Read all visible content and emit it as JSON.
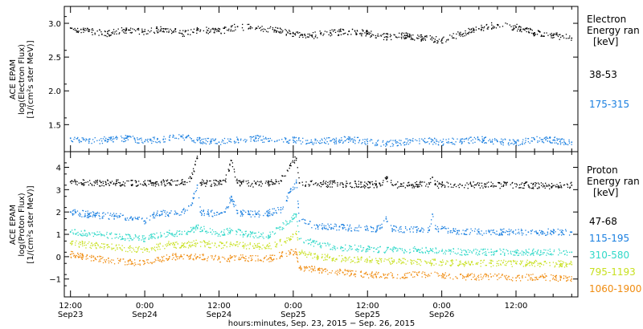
{
  "chart_data": [
    {
      "type": "scatter",
      "ylabel_lines": [
        "ACE EPAM",
        "log(Electron Flux)",
        "[1/(cm²s ster MeV)]"
      ],
      "ylim": [
        1.1,
        3.25
      ],
      "yticks": [
        1.5,
        2.0,
        2.5,
        3.0
      ],
      "ytick_labels": [
        "1.5",
        "2.0",
        "2.5",
        "3.0"
      ],
      "legend_title": [
        "Electron",
        "Energy ran",
        "[keV]"
      ],
      "series": [
        {
          "name": "38-53",
          "color": "#000000",
          "x": [
            0,
            3,
            6,
            9,
            12,
            15,
            18,
            21,
            24,
            27,
            30,
            33,
            36,
            39,
            42,
            45,
            48,
            51,
            54,
            57,
            60,
            63,
            66,
            69,
            72,
            75,
            78,
            81
          ],
          "y": [
            2.93,
            2.88,
            2.85,
            2.9,
            2.88,
            2.92,
            2.85,
            2.9,
            2.88,
            2.95,
            2.93,
            2.9,
            2.85,
            2.82,
            2.86,
            2.88,
            2.85,
            2.8,
            2.82,
            2.78,
            2.75,
            2.84,
            2.92,
            2.98,
            2.94,
            2.86,
            2.82,
            2.78
          ]
        },
        {
          "name": "175-315",
          "color": "#1a7fe0",
          "x": [
            0,
            3,
            6,
            9,
            12,
            15,
            18,
            21,
            24,
            27,
            30,
            33,
            36,
            39,
            42,
            45,
            48,
            51,
            54,
            57,
            60,
            63,
            66,
            69,
            72,
            75,
            78,
            81
          ],
          "y": [
            1.3,
            1.25,
            1.28,
            1.3,
            1.25,
            1.28,
            1.32,
            1.26,
            1.24,
            1.28,
            1.3,
            1.25,
            1.27,
            1.24,
            1.26,
            1.28,
            1.25,
            1.22,
            1.24,
            1.27,
            1.24,
            1.26,
            1.28,
            1.25,
            1.23,
            1.28,
            1.27,
            1.24
          ]
        }
      ]
    },
    {
      "type": "scatter",
      "ylabel_lines": [
        "ACE EPAM",
        "log(Proton Flux)",
        "[1/(cm²s ster MeV)]"
      ],
      "ylim": [
        -1.8,
        4.7
      ],
      "yticks": [
        -1,
        0,
        1,
        2,
        3,
        4
      ],
      "ytick_labels": [
        "−1",
        "0",
        "1",
        "2",
        "3",
        "4"
      ],
      "legend_title": [
        "Proton",
        "Energy ran",
        "[keV]"
      ],
      "xlabel": "hours:minutes, Sep. 23, 2015 − Sep. 26, 2015",
      "xlim": [
        -1,
        82
      ],
      "xticks": [
        0,
        12,
        24,
        36,
        48,
        60,
        72
      ],
      "xtick_time": [
        "12:00",
        "0:00",
        "12:00",
        "0:00",
        "12:00",
        "0:00",
        "12:00"
      ],
      "xtick_date": [
        "Sep23",
        "Sep24",
        "Sep24",
        "Sep25",
        "Sep25",
        "Sep26",
        ""
      ],
      "series": [
        {
          "name": "47-68",
          "color": "#000000",
          "x": [
            0,
            4,
            8,
            12,
            16,
            18,
            19.5,
            20.5,
            21,
            24,
            25,
            26,
            27,
            30,
            32,
            34,
            35.5,
            36.5,
            37,
            40,
            44,
            48,
            50,
            51,
            52,
            56,
            58,
            58.5,
            59,
            62,
            66,
            70,
            74,
            78,
            81
          ],
          "y": [
            3.35,
            3.3,
            3.3,
            3.28,
            3.3,
            3.3,
            3.5,
            4.4,
            3.3,
            3.28,
            3.4,
            4.3,
            3.3,
            3.25,
            3.3,
            3.4,
            4.1,
            4.4,
            3.3,
            3.25,
            3.25,
            3.22,
            3.25,
            3.5,
            3.22,
            3.22,
            3.25,
            3.55,
            3.22,
            3.2,
            3.2,
            3.2,
            3.2,
            3.18,
            3.2
          ]
        },
        {
          "name": "115-195",
          "color": "#1a7fe0",
          "x": [
            0,
            4,
            8,
            10,
            12,
            14,
            16,
            18,
            19.5,
            20.5,
            21,
            24,
            25,
            26,
            27,
            30,
            32,
            34,
            35.5,
            36.5,
            37,
            40,
            44,
            48,
            50,
            51,
            52,
            56,
            58,
            58.5,
            59,
            62,
            66,
            70,
            74,
            78,
            81
          ],
          "y": [
            2.0,
            1.85,
            1.8,
            1.65,
            1.6,
            1.95,
            1.95,
            2.0,
            2.3,
            3.2,
            2.0,
            1.9,
            2.0,
            2.7,
            1.95,
            1.9,
            1.95,
            2.1,
            2.9,
            3.3,
            1.6,
            1.35,
            1.3,
            1.25,
            1.25,
            1.7,
            1.25,
            1.2,
            1.2,
            1.9,
            1.25,
            1.15,
            1.1,
            1.1,
            1.1,
            1.1,
            1.1
          ]
        },
        {
          "name": "310-580",
          "color": "#2fd8c8",
          "x": [
            0,
            4,
            8,
            12,
            16,
            18,
            20.5,
            24,
            26,
            28,
            32,
            35.5,
            36.5,
            37,
            40,
            44,
            48,
            52,
            56,
            60,
            64,
            68,
            72,
            76,
            81
          ],
          "y": [
            1.1,
            1.0,
            0.9,
            0.8,
            1.05,
            1.0,
            1.3,
            1.0,
            1.2,
            1.0,
            0.95,
            1.6,
            1.9,
            0.8,
            0.55,
            0.4,
            0.35,
            0.3,
            0.3,
            0.25,
            0.2,
            0.2,
            0.2,
            0.2,
            0.2
          ]
        },
        {
          "name": "795-1193",
          "color": "#c8e020",
          "x": [
            0,
            4,
            8,
            12,
            16,
            18,
            20.5,
            24,
            26,
            28,
            32,
            35.5,
            36.5,
            37,
            40,
            44,
            48,
            52,
            56,
            60,
            64,
            68,
            72,
            76,
            81
          ],
          "y": [
            0.6,
            0.5,
            0.4,
            0.3,
            0.55,
            0.5,
            0.6,
            0.5,
            0.55,
            0.5,
            0.45,
            0.8,
            1.0,
            0.2,
            0.0,
            -0.1,
            -0.15,
            -0.2,
            -0.25,
            -0.25,
            -0.3,
            -0.3,
            -0.3,
            -0.3,
            -0.35
          ]
        },
        {
          "name": "1060-1900",
          "color": "#f08c10",
          "x": [
            0,
            4,
            8,
            12,
            16,
            18,
            20.5,
            24,
            28,
            32,
            35.5,
            36.5,
            37,
            40,
            44,
            48,
            52,
            56,
            60,
            64,
            68,
            72,
            76,
            81
          ],
          "y": [
            0.1,
            -0.1,
            -0.2,
            -0.3,
            0.0,
            0.0,
            0.0,
            -0.1,
            -0.05,
            -0.1,
            0.2,
            0.2,
            -0.5,
            -0.6,
            -0.7,
            -0.8,
            -0.85,
            -0.8,
            -0.85,
            -0.9,
            -0.9,
            -0.95,
            -0.9,
            -1.0
          ]
        }
      ]
    }
  ]
}
